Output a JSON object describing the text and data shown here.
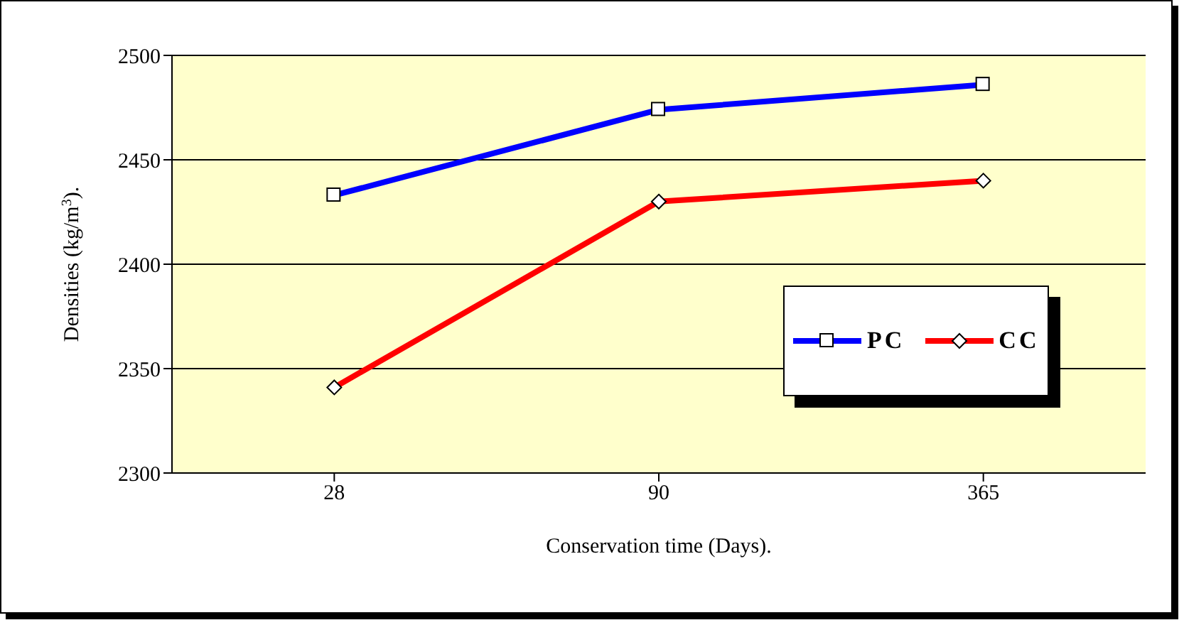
{
  "chart_data": {
    "type": "line",
    "xlabel": "Conservation time (Days).",
    "ylabel": "Densities (kg/m$^{3}$).",
    "categories": [
      "28",
      "90",
      "365"
    ],
    "series": [
      {
        "name": "PC",
        "color": "#0000ff",
        "marker": "square",
        "values": [
          2433,
          2474,
          2486
        ]
      },
      {
        "name": "CC",
        "color": "#ff0000",
        "marker": "diamond",
        "values": [
          2341,
          2430,
          2440
        ]
      }
    ],
    "ylim": [
      2300,
      2500
    ],
    "yticks": [
      2300,
      2350,
      2400,
      2450,
      2500
    ],
    "grid": "y",
    "legend": "right"
  }
}
